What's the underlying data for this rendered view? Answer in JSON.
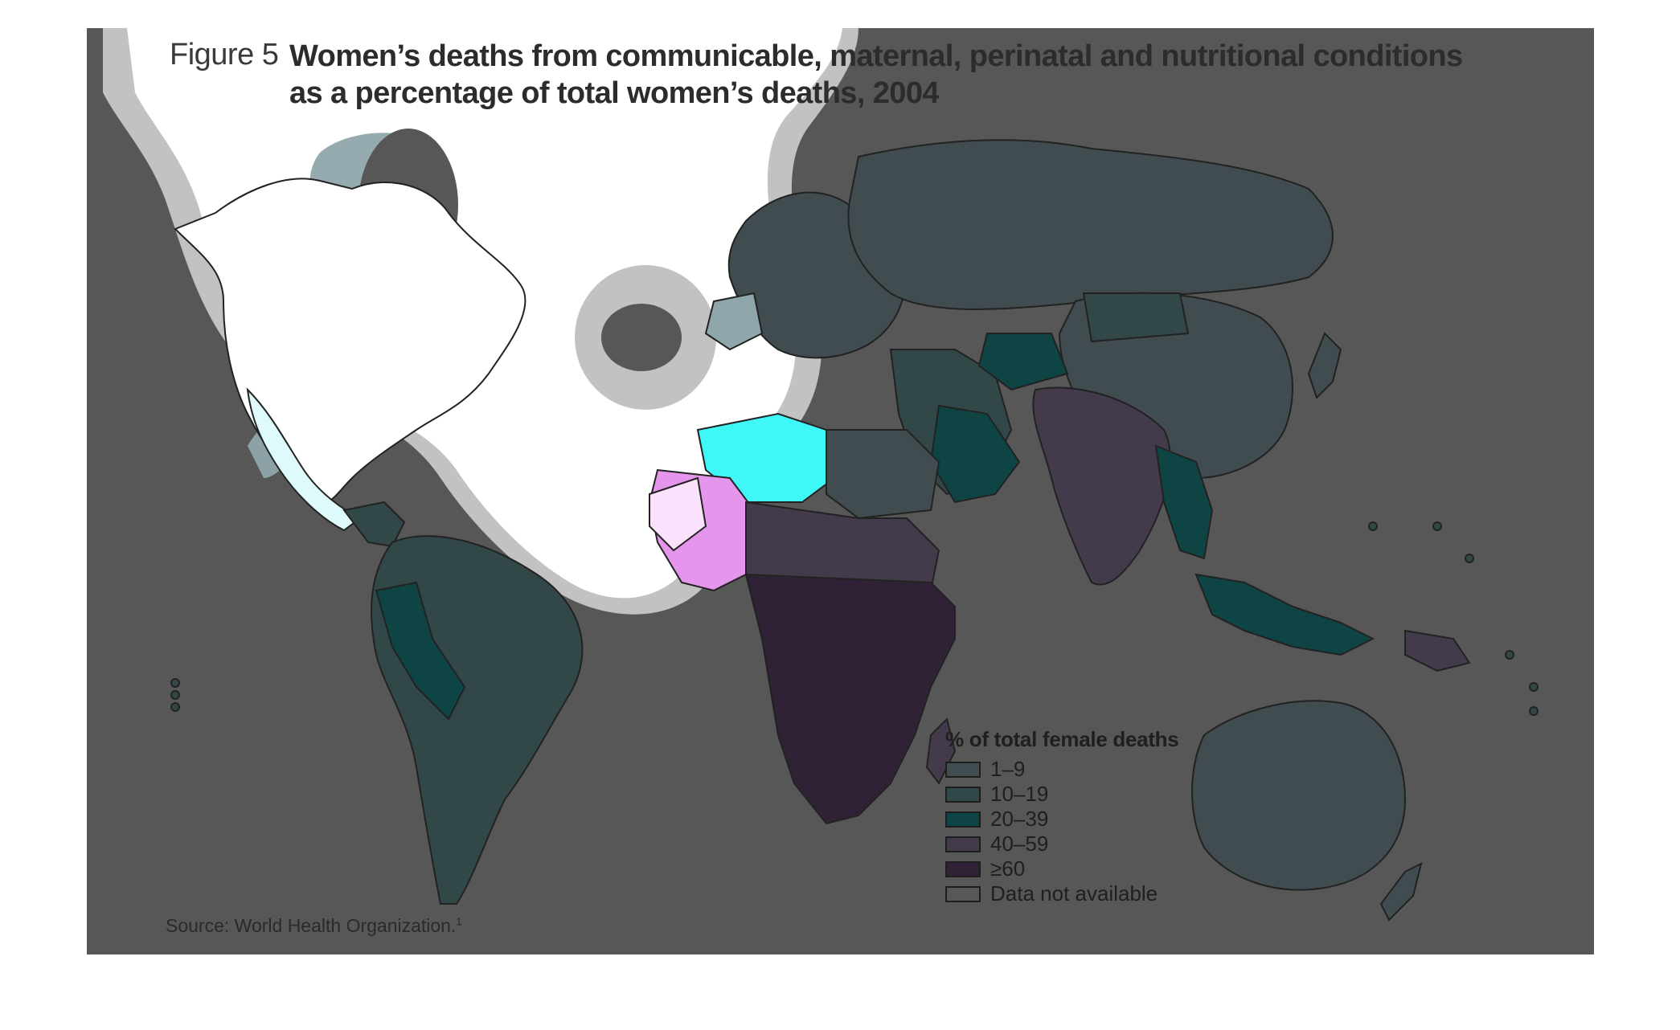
{
  "figure": {
    "label": "Figure 5",
    "title_line1": "Women’s deaths from communicable, maternal, perinatal and nutritional conditions",
    "title_line2": "as a percentage of total women’s deaths, 2004"
  },
  "legend": {
    "title": "% of total female deaths",
    "items": [
      {
        "label": "1–9",
        "color": "#404c4f"
      },
      {
        "label": "10–19",
        "color": "#324747"
      },
      {
        "label": "20–39",
        "color": "#0f4444"
      },
      {
        "label": "40–59",
        "color": "#433a4b"
      },
      {
        "label": "≥60",
        "color": "#2f2236"
      },
      {
        "label": "Data not available",
        "color": "#575757"
      }
    ]
  },
  "source": {
    "text": "Source: World Health Organization.",
    "footnote": "1"
  },
  "colors": {
    "background": "#575757",
    "overlay_white": "#ffffff",
    "overlay_halo": "#c2c2c2",
    "highlight_cyan": "#3ff7f7",
    "highlight_magenta": "#e695ec",
    "highlight_teal": "#8fa6ab"
  }
}
